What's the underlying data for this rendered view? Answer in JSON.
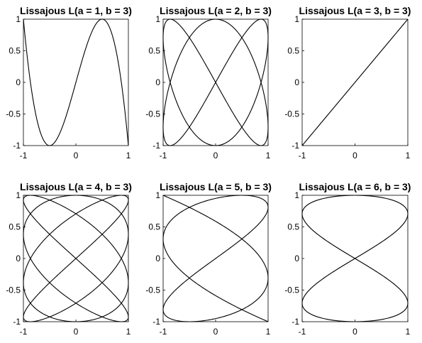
{
  "figure": {
    "background": "#ffffff",
    "line_color": "#000000"
  },
  "chart_data": [
    {
      "type": "line",
      "title": "Lissajous L(a = 1, b = 3)",
      "xlabel": "",
      "ylabel": "",
      "xlim": [
        -1,
        1
      ],
      "ylim": [
        -1,
        1
      ],
      "xticks": [
        "-1",
        "0",
        "1"
      ],
      "yticks": [
        "1",
        "0.5",
        "0",
        "-0.5",
        "-1"
      ],
      "a": 1,
      "b": 3,
      "x": "sin(a·t)",
      "y": "sin(b·t)",
      "t_range": [
        0,
        6.2832
      ],
      "grid": false,
      "legend": "none"
    },
    {
      "type": "line",
      "title": "Lissajous L(a = 2, b = 3)",
      "xlabel": "",
      "ylabel": "",
      "xlim": [
        -1,
        1
      ],
      "ylim": [
        -1,
        1
      ],
      "xticks": [
        "-1",
        "0",
        "1"
      ],
      "yticks": [
        "1",
        "0.5",
        "0",
        "-0.5",
        "-1"
      ],
      "a": 2,
      "b": 3,
      "x": "sin(a·t)",
      "y": "sin(b·t)",
      "t_range": [
        0,
        6.2832
      ],
      "grid": false,
      "legend": "none"
    },
    {
      "type": "line",
      "title": "Lissajous L(a = 3, b = 3)",
      "xlabel": "",
      "ylabel": "",
      "xlim": [
        -1,
        1
      ],
      "ylim": [
        -1,
        1
      ],
      "xticks": [
        "-1",
        "0",
        "1"
      ],
      "yticks": [
        "1",
        "0.5",
        "0",
        "-0.5",
        "-1"
      ],
      "a": 3,
      "b": 3,
      "x": "sin(a·t)",
      "y": "sin(b·t)",
      "t_range": [
        0,
        6.2832
      ],
      "grid": false,
      "legend": "none"
    },
    {
      "type": "line",
      "title": "Lissajous L(a = 4, b = 3)",
      "xlabel": "",
      "ylabel": "",
      "xlim": [
        -1,
        1
      ],
      "ylim": [
        -1,
        1
      ],
      "xticks": [
        "-1",
        "0",
        "1"
      ],
      "yticks": [
        "1",
        "0.5",
        "0",
        "-0.5",
        "-1"
      ],
      "a": 4,
      "b": 3,
      "x": "sin(a·t)",
      "y": "sin(b·t)",
      "t_range": [
        0,
        6.2832
      ],
      "grid": false,
      "legend": "none"
    },
    {
      "type": "line",
      "title": "Lissajous L(a = 5, b = 3)",
      "xlabel": "",
      "ylabel": "",
      "xlim": [
        -1,
        1
      ],
      "ylim": [
        -1,
        1
      ],
      "xticks": [
        "-1",
        "0",
        "1"
      ],
      "yticks": [
        "1",
        "0.5",
        "0",
        "-0.5",
        "-1"
      ],
      "a": 5,
      "b": 3,
      "x": "sin(a·t)",
      "y": "sin(b·t)",
      "t_range": [
        0,
        6.2832
      ],
      "grid": false,
      "legend": "none"
    },
    {
      "type": "line",
      "title": "Lissajous L(a = 6, b = 3)",
      "xlabel": "",
      "ylabel": "",
      "xlim": [
        -1,
        1
      ],
      "ylim": [
        -1,
        1
      ],
      "xticks": [
        "-1",
        "0",
        "1"
      ],
      "yticks": [
        "1",
        "0.5",
        "0",
        "-0.5",
        "-1"
      ],
      "a": 6,
      "b": 3,
      "x": "sin(a·t)",
      "y": "sin(b·t)",
      "t_range": [
        0,
        6.2832
      ],
      "grid": false,
      "legend": "none"
    }
  ]
}
